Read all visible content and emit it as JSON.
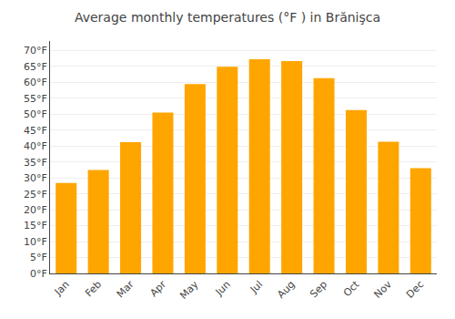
{
  "chart_data": {
    "type": "bar",
    "title": "Average monthly temperatures (°F ) in Brănişca",
    "categories": [
      "Jan",
      "Feb",
      "Mar",
      "Apr",
      "May",
      "Jun",
      "Jul",
      "Aug",
      "Sep",
      "Oct",
      "Nov",
      "Dec"
    ],
    "values": [
      28.4,
      32.5,
      41.2,
      50.5,
      59.5,
      64.9,
      67.3,
      66.7,
      61.3,
      51.3,
      41.4,
      33.1
    ],
    "color": "#FFA500",
    "ylim": [
      0,
      73
    ],
    "yticks": [
      {
        "value": 0,
        "label": "0°F"
      },
      {
        "value": 5,
        "label": "5°F"
      },
      {
        "value": 10,
        "label": "10°F"
      },
      {
        "value": 15,
        "label": "15°F"
      },
      {
        "value": 20,
        "label": "20°F"
      },
      {
        "value": 25,
        "label": "25°F"
      },
      {
        "value": 30,
        "label": "30°F"
      },
      {
        "value": 35,
        "label": "35°F"
      },
      {
        "value": 40,
        "label": "40°F"
      },
      {
        "value": 45,
        "label": "45°F"
      },
      {
        "value": 50,
        "label": "50°F"
      },
      {
        "value": 55,
        "label": "55°F"
      },
      {
        "value": 60,
        "label": "60°F"
      },
      {
        "value": 65,
        "label": "65°F"
      },
      {
        "value": 70,
        "label": "70°F"
      }
    ],
    "grid": true
  }
}
